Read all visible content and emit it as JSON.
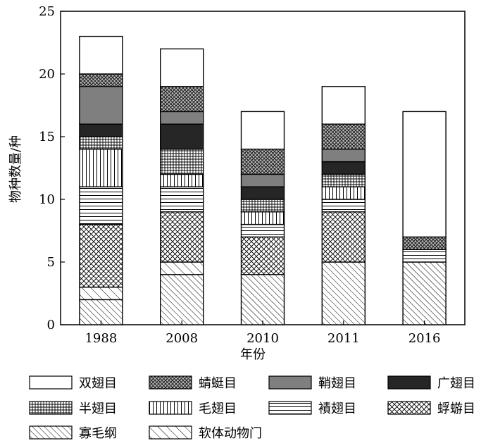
{
  "chart_data": {
    "type": "bar",
    "stacked": true,
    "title": "",
    "xlabel": "年份",
    "ylabel": "物种数量/种",
    "ylim": [
      0,
      25
    ],
    "yticks": [
      0,
      5,
      10,
      15,
      20,
      25
    ],
    "grid": false,
    "legend_position": "bottom",
    "categories": [
      "1988",
      "2008",
      "2010",
      "2011",
      "2016"
    ],
    "series": [
      {
        "name": "寡毛纲",
        "pattern": "diag-fine",
        "values": [
          2,
          4,
          4,
          5,
          5
        ]
      },
      {
        "name": "软体动物门",
        "pattern": "diag-wide",
        "values": [
          1,
          1,
          0,
          0,
          0
        ]
      },
      {
        "name": "蜉蝣目",
        "pattern": "crosshatch",
        "values": [
          5,
          4,
          3,
          4,
          0
        ]
      },
      {
        "name": "襀翅目",
        "pattern": "horizontal",
        "values": [
          3,
          2,
          1,
          1,
          1
        ]
      },
      {
        "name": "毛翅目",
        "pattern": "vertical",
        "values": [
          3,
          1,
          1,
          1,
          0
        ]
      },
      {
        "name": "半翅目",
        "pattern": "grid",
        "values": [
          1,
          2,
          1,
          1,
          0
        ]
      },
      {
        "name": "广翅目",
        "pattern": "dark",
        "values": [
          1,
          2,
          1,
          1,
          0
        ]
      },
      {
        "name": "鞘翅目",
        "pattern": "gray",
        "values": [
          3,
          1,
          1,
          1,
          0
        ]
      },
      {
        "name": "蜻蜓目",
        "pattern": "dense-cross",
        "values": [
          1,
          2,
          2,
          2,
          1
        ]
      },
      {
        "name": "双翅目",
        "pattern": "white",
        "values": [
          3,
          3,
          3,
          3,
          10
        ]
      }
    ],
    "legend_order": [
      "双翅目",
      "蜻蜓目",
      "鞘翅目",
      "广翅目",
      "半翅目",
      "毛翅目",
      "襀翅目",
      "蜉蝣目",
      "寡毛纲",
      "软体动物门"
    ]
  }
}
